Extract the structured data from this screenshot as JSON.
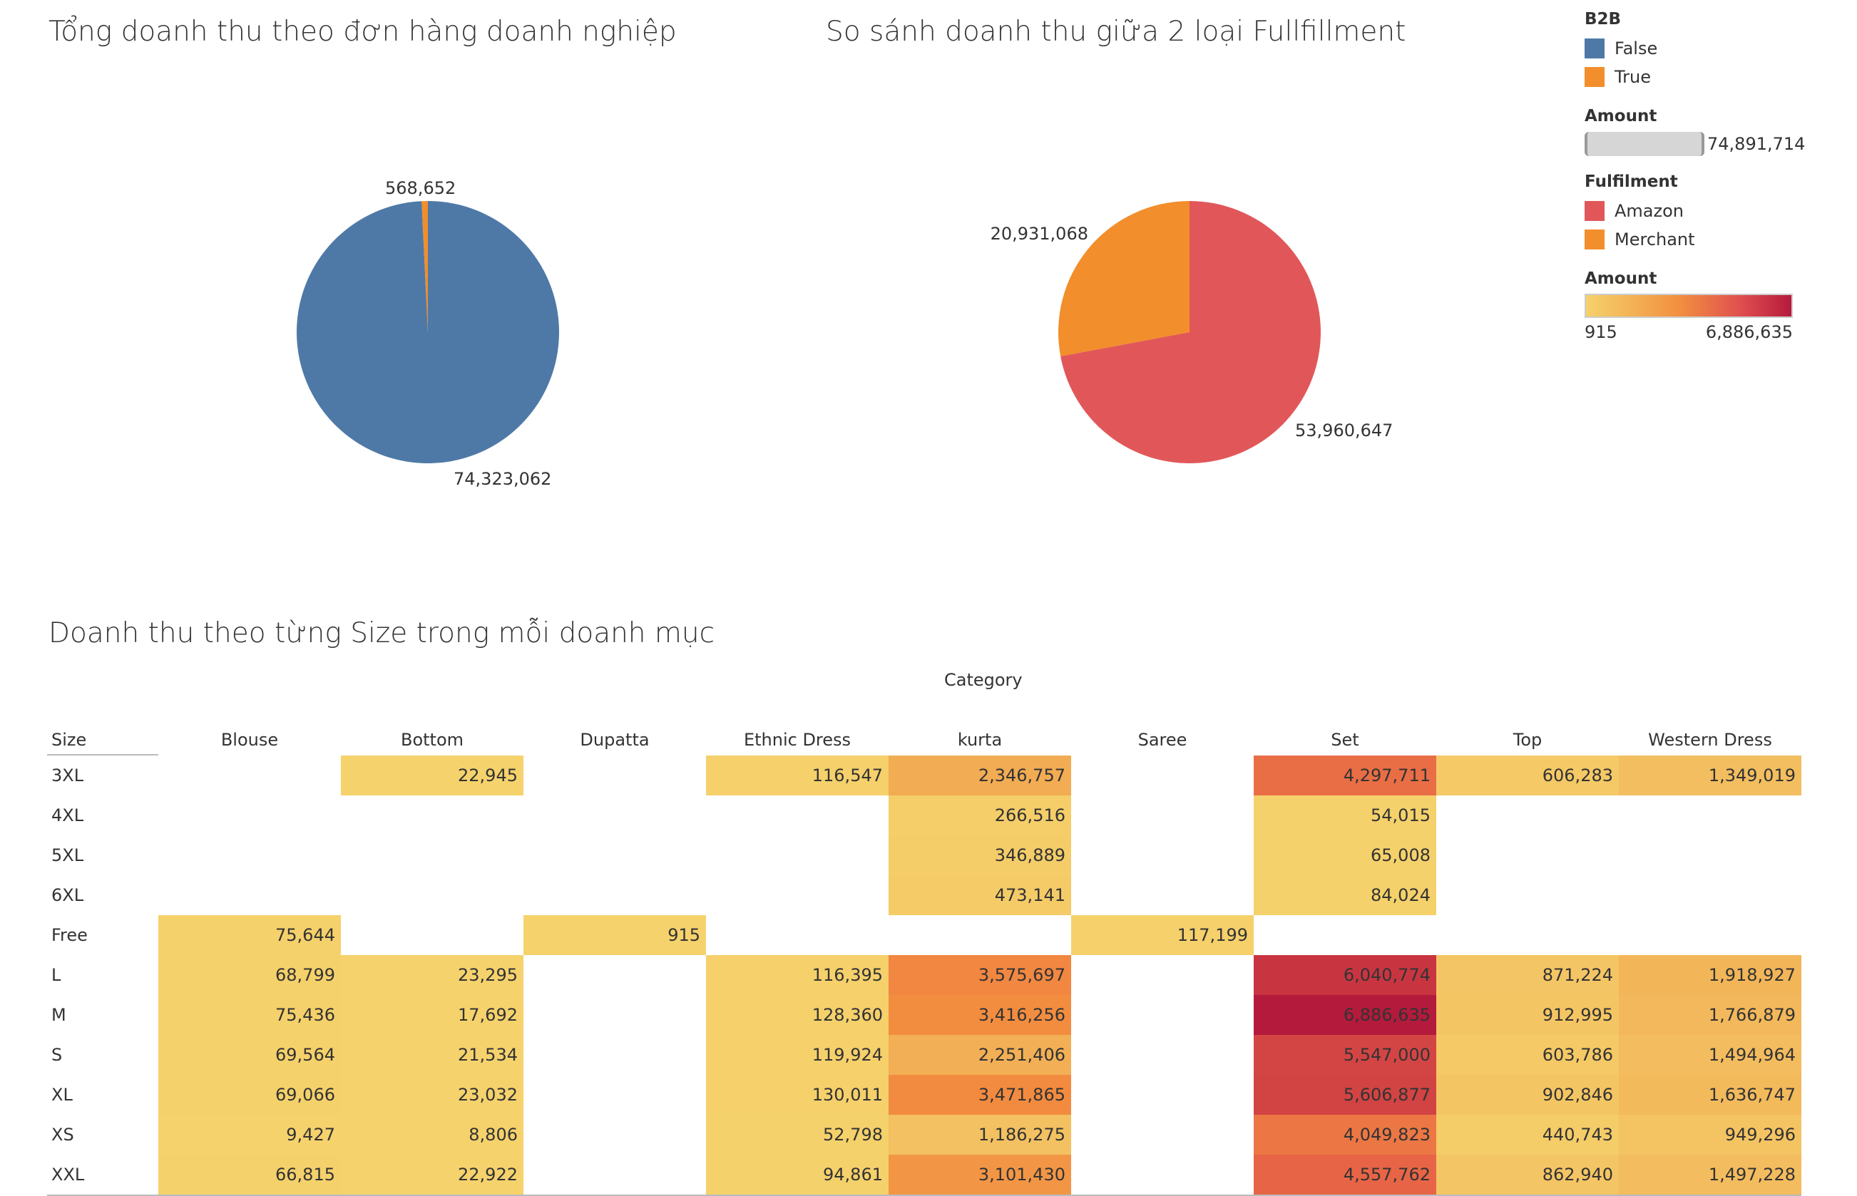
{
  "titles": {
    "b2b": "Tổng doanh thu theo đơn hàng doanh nghiệp",
    "fulfillment": "So sánh doanh thu giữa 2 loại Fullfillment",
    "size": "Doanh thu theo từng Size trong mỗi doanh mục"
  },
  "legend": {
    "b2b_title": "B2B",
    "b2b_items": [
      {
        "label": "False",
        "color": "#4e79a7"
      },
      {
        "label": "True",
        "color": "#f28e2b"
      }
    ],
    "amount1_title": "Amount",
    "amount1_value": "74,891,714",
    "fulfilment_title": "Fulfilment",
    "fulfilment_items": [
      {
        "label": "Amazon",
        "color": "#e15759"
      },
      {
        "label": "Merchant",
        "color": "#f28e2b"
      }
    ],
    "amount2_title": "Amount",
    "amount2_min": "915",
    "amount2_max": "6,886,635"
  },
  "chart_data": [
    {
      "type": "pie",
      "title": "Tổng doanh thu theo đơn hàng doanh nghiệp",
      "slices": [
        {
          "name": "False",
          "value": 74323062,
          "label": "74,323,062",
          "color": "#4e79a7"
        },
        {
          "name": "True",
          "value": 568652,
          "label": "568,652",
          "color": "#f28e2b"
        }
      ]
    },
    {
      "type": "pie",
      "title": "So sánh doanh thu giữa 2 loại Fullfillment",
      "slices": [
        {
          "name": "Amazon",
          "value": 53960647,
          "label": "53,960,647",
          "color": "#e15759"
        },
        {
          "name": "Merchant",
          "value": 20931068,
          "label": "20,931,068",
          "color": "#f28e2b"
        }
      ]
    },
    {
      "type": "heatmap",
      "title": "Doanh thu theo từng Size trong mỗi doanh mục",
      "col_axis_title": "Category",
      "row_axis_title": "Size",
      "categories": [
        "Blouse",
        "Bottom",
        "Dupatta",
        "Ethnic Dress",
        "kurta",
        "Saree",
        "Set",
        "Top",
        "Western Dress"
      ],
      "sizes": [
        "3XL",
        "4XL",
        "5XL",
        "6XL",
        "Free",
        "L",
        "M",
        "S",
        "XL",
        "XS",
        "XXL"
      ],
      "values": [
        [
          null,
          22945,
          null,
          116547,
          2346757,
          null,
          4297711,
          606283,
          1349019
        ],
        [
          null,
          null,
          null,
          null,
          266516,
          null,
          54015,
          null,
          null
        ],
        [
          null,
          null,
          null,
          null,
          346889,
          null,
          65008,
          null,
          null
        ],
        [
          null,
          null,
          null,
          null,
          473141,
          null,
          84024,
          null,
          null
        ],
        [
          75644,
          null,
          915,
          null,
          null,
          117199,
          null,
          null,
          null
        ],
        [
          68799,
          23295,
          null,
          116395,
          3575697,
          null,
          6040774,
          871224,
          1918927
        ],
        [
          75436,
          17692,
          null,
          128360,
          3416256,
          null,
          6886635,
          912995,
          1766879
        ],
        [
          69564,
          21534,
          null,
          119924,
          2251406,
          null,
          5547000,
          603786,
          1494964
        ],
        [
          69066,
          23032,
          null,
          130011,
          3471865,
          null,
          5606877,
          902846,
          1636747
        ],
        [
          9427,
          8806,
          null,
          52798,
          1186275,
          null,
          4049823,
          440743,
          949296
        ],
        [
          66815,
          22922,
          null,
          94861,
          3101430,
          null,
          4557762,
          862940,
          1497228
        ]
      ],
      "color_range": [
        915,
        6886635
      ]
    }
  ]
}
